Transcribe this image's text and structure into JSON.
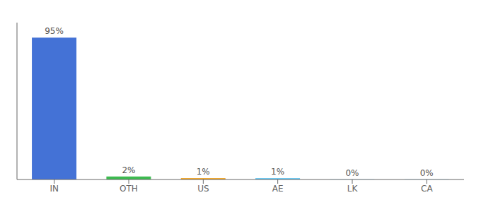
{
  "chart_data": {
    "type": "bar",
    "categories": [
      "IN",
      "OTH",
      "US",
      "AE",
      "LK",
      "CA"
    ],
    "values": [
      95,
      2,
      1,
      1,
      0.15,
      0.15
    ],
    "value_labels": [
      "95%",
      "2%",
      "1%",
      "1%",
      "0%",
      "0%"
    ],
    "colors": [
      "#4472d6",
      "#3dba50",
      "#f0a830",
      "#6ec8f0",
      "#6ec8f0",
      "#6ec8f0"
    ],
    "ylim": [
      0,
      105
    ],
    "data_labels": true,
    "tick_labels": "x",
    "grid": false
  }
}
